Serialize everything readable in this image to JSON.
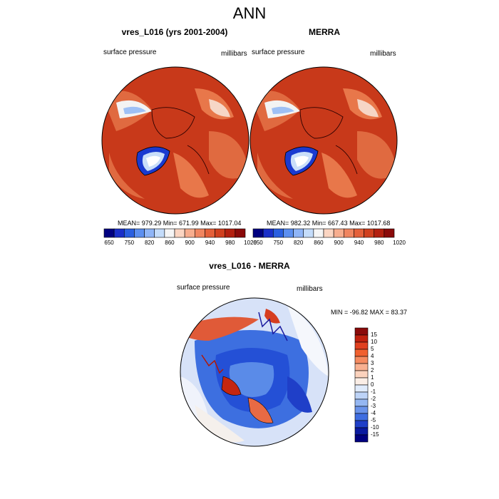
{
  "title": "ANN",
  "panels": [
    {
      "title": "vres_L016 (yrs 2001-2004)",
      "left_label": "surface pressure",
      "right_label": "millibars",
      "stats": "MEAN= 979.29  Min= 671.99  Max= 1017.04"
    },
    {
      "title": "MERRA",
      "left_label": "surface pressure",
      "right_label": "millibars",
      "stats": "MEAN= 982.32  Min= 667.43  Max= 1017.68"
    }
  ],
  "diff_panel": {
    "title": "vres_L016 - MERRA",
    "left_label": "surface pressure",
    "right_label": "millibars",
    "stats": "MIN = -96.82 MAX =  83.37"
  },
  "chart_data": [
    {
      "type": "heatmap",
      "title": "vres_L016 (yrs 2001-2004)",
      "variable": "surface pressure",
      "units": "millibars",
      "projection": "polar stereographic (north)",
      "mean": 979.29,
      "min": 671.99,
      "max": 1017.04,
      "colorbar_ticks": [
        "650",
        "750",
        "820",
        "860",
        "900",
        "940",
        "980",
        "1020"
      ],
      "colorbar_colors": [
        "#000080",
        "#1a2fc9",
        "#2a5fe0",
        "#5c8ff0",
        "#8fb5f7",
        "#c4dcfa",
        "#f5f5f5",
        "#fbd5c2",
        "#f7ad8e",
        "#f08560",
        "#e4603a",
        "#d0401f",
        "#b32010",
        "#8a0a0a"
      ]
    },
    {
      "type": "heatmap",
      "title": "MERRA",
      "variable": "surface pressure",
      "units": "millibars",
      "projection": "polar stereographic (north)",
      "mean": 982.32,
      "min": 667.43,
      "max": 1017.68,
      "colorbar_ticks": [
        "650",
        "750",
        "820",
        "860",
        "900",
        "940",
        "980",
        "1020"
      ],
      "colorbar_colors": [
        "#000080",
        "#1a2fc9",
        "#2a5fe0",
        "#5c8ff0",
        "#8fb5f7",
        "#c4dcfa",
        "#f5f5f5",
        "#fbd5c2",
        "#f7ad8e",
        "#f08560",
        "#e4603a",
        "#d0401f",
        "#b32010",
        "#8a0a0a"
      ]
    },
    {
      "type": "heatmap",
      "title": "vres_L016 - MERRA",
      "variable": "surface pressure",
      "units": "millibars",
      "projection": "polar stereographic (north)",
      "min": -96.82,
      "max": 83.37,
      "colorbar_ticks": [
        "15",
        "10",
        "5",
        "4",
        "3",
        "2",
        "1",
        "0",
        "-1",
        "-2",
        "-3",
        "-4",
        "-5",
        "-10",
        "-15"
      ],
      "colorbar_colors": [
        "#8a0a0a",
        "#c0200e",
        "#e0401f",
        "#f0602f",
        "#f58a5f",
        "#f8b090",
        "#fbd2bd",
        "#fbeee6",
        "#e0ebfb",
        "#bdd3f7",
        "#95b7f2",
        "#6a93ea",
        "#3f6de0",
        "#1f3fc8",
        "#0a1aa0",
        "#000080"
      ]
    }
  ]
}
